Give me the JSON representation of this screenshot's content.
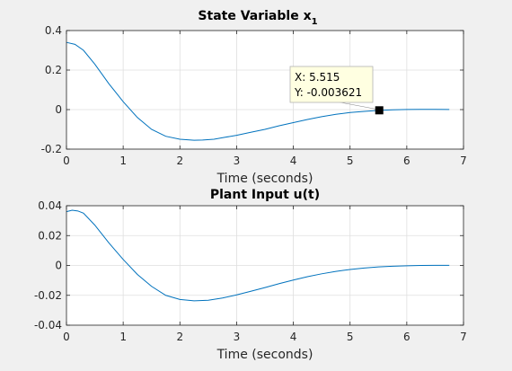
{
  "chart_data": [
    {
      "type": "line",
      "title": "State Variable x",
      "title_subscript": "1",
      "xlabel": "Time (seconds)",
      "ylabel": "",
      "xlim": [
        0,
        7
      ],
      "ylim": [
        -0.2,
        0.4
      ],
      "xticks": [
        "0",
        "1",
        "2",
        "3",
        "4",
        "5",
        "6",
        "7"
      ],
      "yticks": [
        "-0.2",
        "0",
        "0.2",
        "0.4"
      ],
      "grid": true,
      "line_color": "#0072bd",
      "series": [
        {
          "x": [
            0,
            0.15,
            0.3,
            0.5,
            0.75,
            1.0,
            1.25,
            1.5,
            1.75,
            2.0,
            2.25,
            2.4,
            2.6,
            2.8,
            3.0,
            3.25,
            3.5,
            3.75,
            4.0,
            4.25,
            4.5,
            4.75,
            5.0,
            5.25,
            5.5,
            5.75,
            6.0,
            6.25,
            6.5,
            6.75
          ],
          "y": [
            0.34,
            0.33,
            0.3,
            0.23,
            0.13,
            0.04,
            -0.04,
            -0.1,
            -0.135,
            -0.15,
            -0.155,
            -0.154,
            -0.15,
            -0.14,
            -0.13,
            -0.115,
            -0.1,
            -0.082,
            -0.066,
            -0.05,
            -0.036,
            -0.024,
            -0.015,
            -0.009,
            -0.004,
            -0.001,
            0.0005,
            0.001,
            0.001,
            0.0005
          ]
        }
      ],
      "datatip": {
        "x": 5.515,
        "y": -0.003621,
        "x_text": "X: 5.515",
        "y_text": "Y: -0.003621"
      }
    },
    {
      "type": "line",
      "title": "Plant Input u(t)",
      "xlabel": "Time (seconds)",
      "ylabel": "",
      "xlim": [
        0,
        7
      ],
      "ylim": [
        -0.04,
        0.04
      ],
      "xticks": [
        "0",
        "1",
        "2",
        "3",
        "4",
        "5",
        "6",
        "7"
      ],
      "yticks": [
        "-0.04",
        "-0.02",
        "0",
        "0.02",
        "0.04"
      ],
      "grid": true,
      "line_color": "#0072bd",
      "series": [
        {
          "x": [
            0,
            0.1,
            0.2,
            0.3,
            0.5,
            0.75,
            1.0,
            1.25,
            1.5,
            1.75,
            2.0,
            2.25,
            2.5,
            2.75,
            3.0,
            3.25,
            3.5,
            3.75,
            4.0,
            4.25,
            4.5,
            4.75,
            5.0,
            5.25,
            5.5,
            5.75,
            6.0,
            6.25,
            6.5,
            6.75
          ],
          "y": [
            0.036,
            0.037,
            0.0365,
            0.035,
            0.027,
            0.015,
            0.004,
            -0.006,
            -0.014,
            -0.02,
            -0.0228,
            -0.0237,
            -0.0233,
            -0.0218,
            -0.0197,
            -0.0173,
            -0.0148,
            -0.0122,
            -0.0098,
            -0.0075,
            -0.0056,
            -0.004,
            -0.0027,
            -0.0017,
            -0.001,
            -0.0005,
            -0.0002,
            0.0,
            0.0001,
            0.0001
          ]
        }
      ]
    }
  ]
}
